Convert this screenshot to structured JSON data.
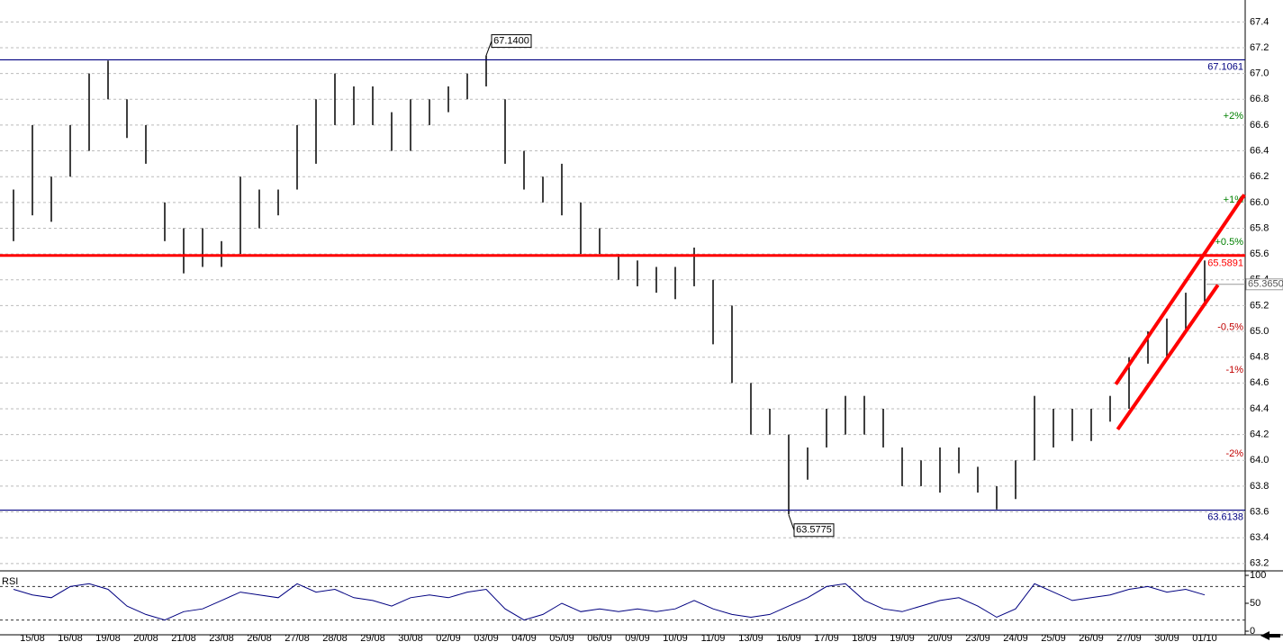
{
  "chart_data": [
    {
      "type": "range",
      "categories": [
        "15/08",
        "16/08",
        "19/08",
        "20/08",
        "21/08",
        "23/08",
        "26/08",
        "27/08",
        "28/08",
        "29/08",
        "30/08",
        "02/09",
        "03/09",
        "04/09",
        "05/09",
        "06/09",
        "09/09",
        "10/09",
        "11/09",
        "13/09",
        "16/09",
        "17/09",
        "18/09",
        "19/09",
        "20/09",
        "23/09",
        "24/09",
        "25/09",
        "26/09",
        "27/09",
        "30/09",
        "01/10"
      ],
      "highs": [
        66.1,
        66.6,
        66.2,
        66.6,
        67.0,
        67.1,
        66.8,
        66.6,
        66.0,
        65.8,
        65.8,
        65.7,
        66.2,
        66.1,
        66.1,
        66.6,
        66.8,
        67.0,
        66.9,
        66.9,
        66.7,
        66.8,
        66.8,
        66.9,
        67.0,
        67.14,
        66.8,
        66.4,
        66.2,
        66.3,
        66.0,
        65.8,
        65.6,
        65.55,
        65.5,
        65.5,
        65.65,
        65.4,
        65.2,
        64.6,
        64.4,
        64.2,
        64.1,
        64.4,
        64.5,
        64.5,
        64.4,
        64.1,
        64.0,
        64.1,
        64.1,
        63.95,
        63.8,
        64.0,
        64.5,
        64.4,
        64.4,
        64.4,
        64.5,
        64.8,
        65.0,
        65.1,
        65.3,
        65.55
      ],
      "lows": [
        65.7,
        65.9,
        65.85,
        66.2,
        66.4,
        66.8,
        66.5,
        66.3,
        65.7,
        65.45,
        65.5,
        65.5,
        65.6,
        65.8,
        65.9,
        66.1,
        66.3,
        66.6,
        66.6,
        66.6,
        66.4,
        66.4,
        66.6,
        66.7,
        66.8,
        66.9,
        66.3,
        66.1,
        66.0,
        65.9,
        65.6,
        65.6,
        65.4,
        65.35,
        65.3,
        65.25,
        65.35,
        64.9,
        64.6,
        64.2,
        64.2,
        63.58,
        63.85,
        64.1,
        64.2,
        64.2,
        64.1,
        63.8,
        63.8,
        63.75,
        63.9,
        63.75,
        63.62,
        63.7,
        64.0,
        64.1,
        64.15,
        64.15,
        64.3,
        64.4,
        64.75,
        64.8,
        65.0,
        65.2
      ],
      "ylim": [
        63.15,
        67.57
      ],
      "yticks": [
        63.2,
        63.4,
        63.6,
        63.8,
        {
          "value": 64,
          "label": "64.0"
        },
        64.2,
        64.4,
        64.6,
        64.8,
        {
          "value": 65,
          "label": "65.0"
        },
        65.2,
        65.4,
        65.6,
        65.8,
        {
          "value": 66,
          "label": "66.0"
        },
        66.2,
        66.4,
        66.6,
        66.8,
        {
          "value": 67,
          "label": "67.0"
        },
        67.2,
        67.4
      ],
      "grid": true,
      "levels": [
        {
          "value": 67.1061,
          "label": "67.1061",
          "color": "#000080"
        },
        {
          "value": 63.6138,
          "label": "63.6138",
          "color": "#000080"
        },
        {
          "value": 65.5891,
          "label": "65.5891",
          "color": "#ff0000"
        }
      ],
      "last": {
        "value": 65.365,
        "label": "65.3650"
      },
      "percent_levels": [
        {
          "value": 66.67,
          "label": "+2%",
          "color": "#008000"
        },
        {
          "value": 66.02,
          "label": "+1%",
          "color": "#008000"
        },
        {
          "value": 65.69,
          "label": "+0.5%",
          "color": "#008000"
        },
        {
          "value": 65.03,
          "label": "-0.5%",
          "color": "#c00000"
        },
        {
          "value": 64.7,
          "label": "-1%",
          "color": "#c00000"
        },
        {
          "value": 64.05,
          "label": "-2%",
          "color": "#c00000"
        }
      ],
      "annotations": [
        {
          "x": 25,
          "value": 67.14,
          "label": "67.1400",
          "side": "above"
        },
        {
          "x": 41,
          "value": 63.5775,
          "label": "63.5775",
          "side": "below"
        }
      ],
      "channel": [
        {
          "x": [
            58.3,
            65.1
          ],
          "values": [
            64.59,
            66.06
          ],
          "color": "#ff0000"
        },
        {
          "x": [
            58.4,
            63.7
          ],
          "values": [
            64.24,
            65.36
          ],
          "color": "#ff0000"
        }
      ]
    },
    {
      "type": "line",
      "label": "RSI",
      "color": "#000080",
      "values": [
        75,
        65,
        60,
        80,
        85,
        75,
        45,
        30,
        20,
        35,
        40,
        55,
        70,
        65,
        60,
        85,
        70,
        75,
        60,
        55,
        45,
        60,
        65,
        60,
        70,
        75,
        40,
        20,
        30,
        50,
        35,
        40,
        35,
        40,
        35,
        40,
        55,
        40,
        30,
        25,
        30,
        45,
        60,
        80,
        85,
        55,
        40,
        35,
        45,
        55,
        60,
        45,
        25,
        40,
        85,
        70,
        55,
        60,
        65,
        75,
        80,
        70,
        75,
        65
      ],
      "ylim": [
        0,
        100
      ],
      "yticks": [
        0,
        50,
        100
      ],
      "bands": [
        20,
        80
      ]
    }
  ]
}
